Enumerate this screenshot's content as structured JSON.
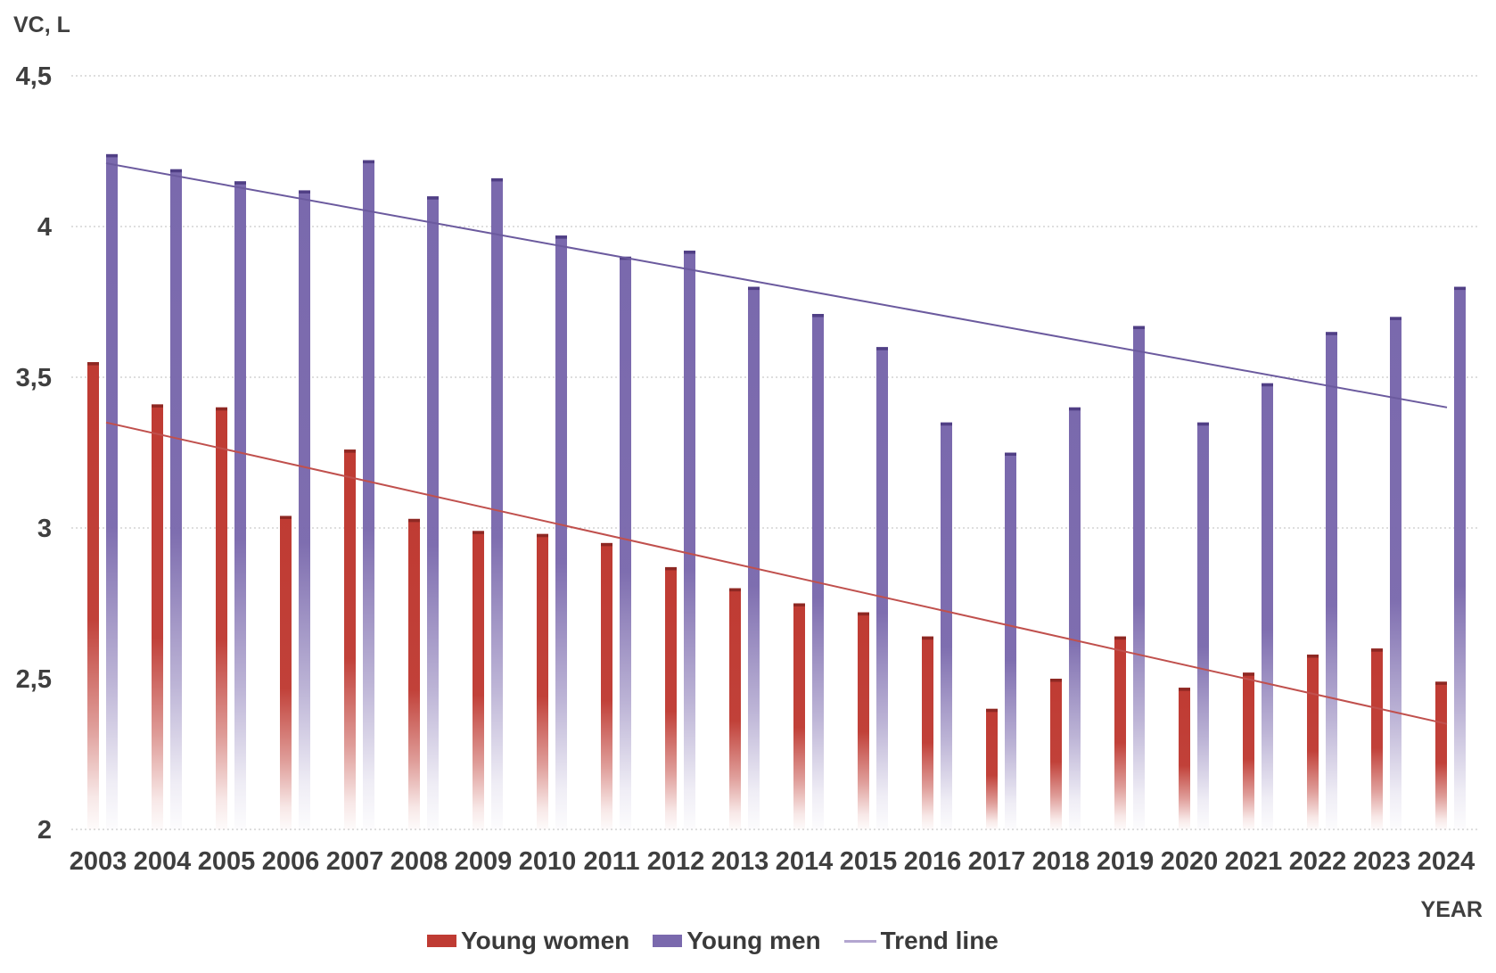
{
  "chart_data": {
    "type": "bar",
    "title": "",
    "ylabel": "VC, L",
    "xlabel": "YEAR",
    "ylim": [
      2,
      4.5
    ],
    "ytick_step": 0.5,
    "yticks": [
      {
        "value": 2,
        "label": "2",
        "gridline": true
      },
      {
        "value": 2.5,
        "label": "2,5",
        "gridline": false
      },
      {
        "value": 3,
        "label": "3",
        "gridline": true
      },
      {
        "value": 3.5,
        "label": "3,5",
        "gridline": true
      },
      {
        "value": 4,
        "label": "4",
        "gridline": true
      },
      {
        "value": 4.5,
        "label": "4,5",
        "gridline": true
      }
    ],
    "grid": true,
    "legend_position": "bottom",
    "categories": [
      2003,
      2004,
      2005,
      2006,
      2007,
      2008,
      2009,
      2010,
      2011,
      2012,
      2013,
      2014,
      2015,
      2016,
      2017,
      2018,
      2019,
      2020,
      2021,
      2022,
      2023,
      2024
    ],
    "series": [
      {
        "name": "Young women",
        "color": "#bf3b33",
        "cap_color": "#8e2823",
        "values": [
          3.55,
          3.41,
          3.4,
          3.04,
          3.26,
          3.03,
          2.99,
          2.98,
          2.95,
          2.87,
          2.8,
          2.75,
          2.72,
          2.64,
          2.4,
          2.5,
          2.64,
          2.47,
          2.52,
          2.58,
          2.6,
          2.49
        ]
      },
      {
        "name": "Young men",
        "color": "#7a69ad",
        "cap_color": "#503f85",
        "values": [
          4.24,
          4.19,
          4.15,
          4.12,
          4.22,
          4.1,
          4.16,
          3.97,
          3.9,
          3.92,
          3.8,
          3.71,
          3.6,
          3.35,
          3.25,
          3.4,
          3.67,
          3.35,
          3.48,
          3.65,
          3.7,
          3.8
        ]
      }
    ],
    "trend_lines": [
      {
        "name": "Young men trend",
        "color": "#6b5a9e",
        "start": 4.21,
        "end": 3.4
      },
      {
        "name": "Young women trend",
        "color": "#c0504d",
        "start": 3.35,
        "end": 2.35
      }
    ],
    "legend": [
      {
        "label": "Young women",
        "swatch": "bar",
        "color": "#bf3b33"
      },
      {
        "label": "Young men",
        "swatch": "bar",
        "color": "#7a69ad"
      },
      {
        "label": "Trend line",
        "swatch": "line",
        "color": "#b3a6d0"
      }
    ]
  }
}
